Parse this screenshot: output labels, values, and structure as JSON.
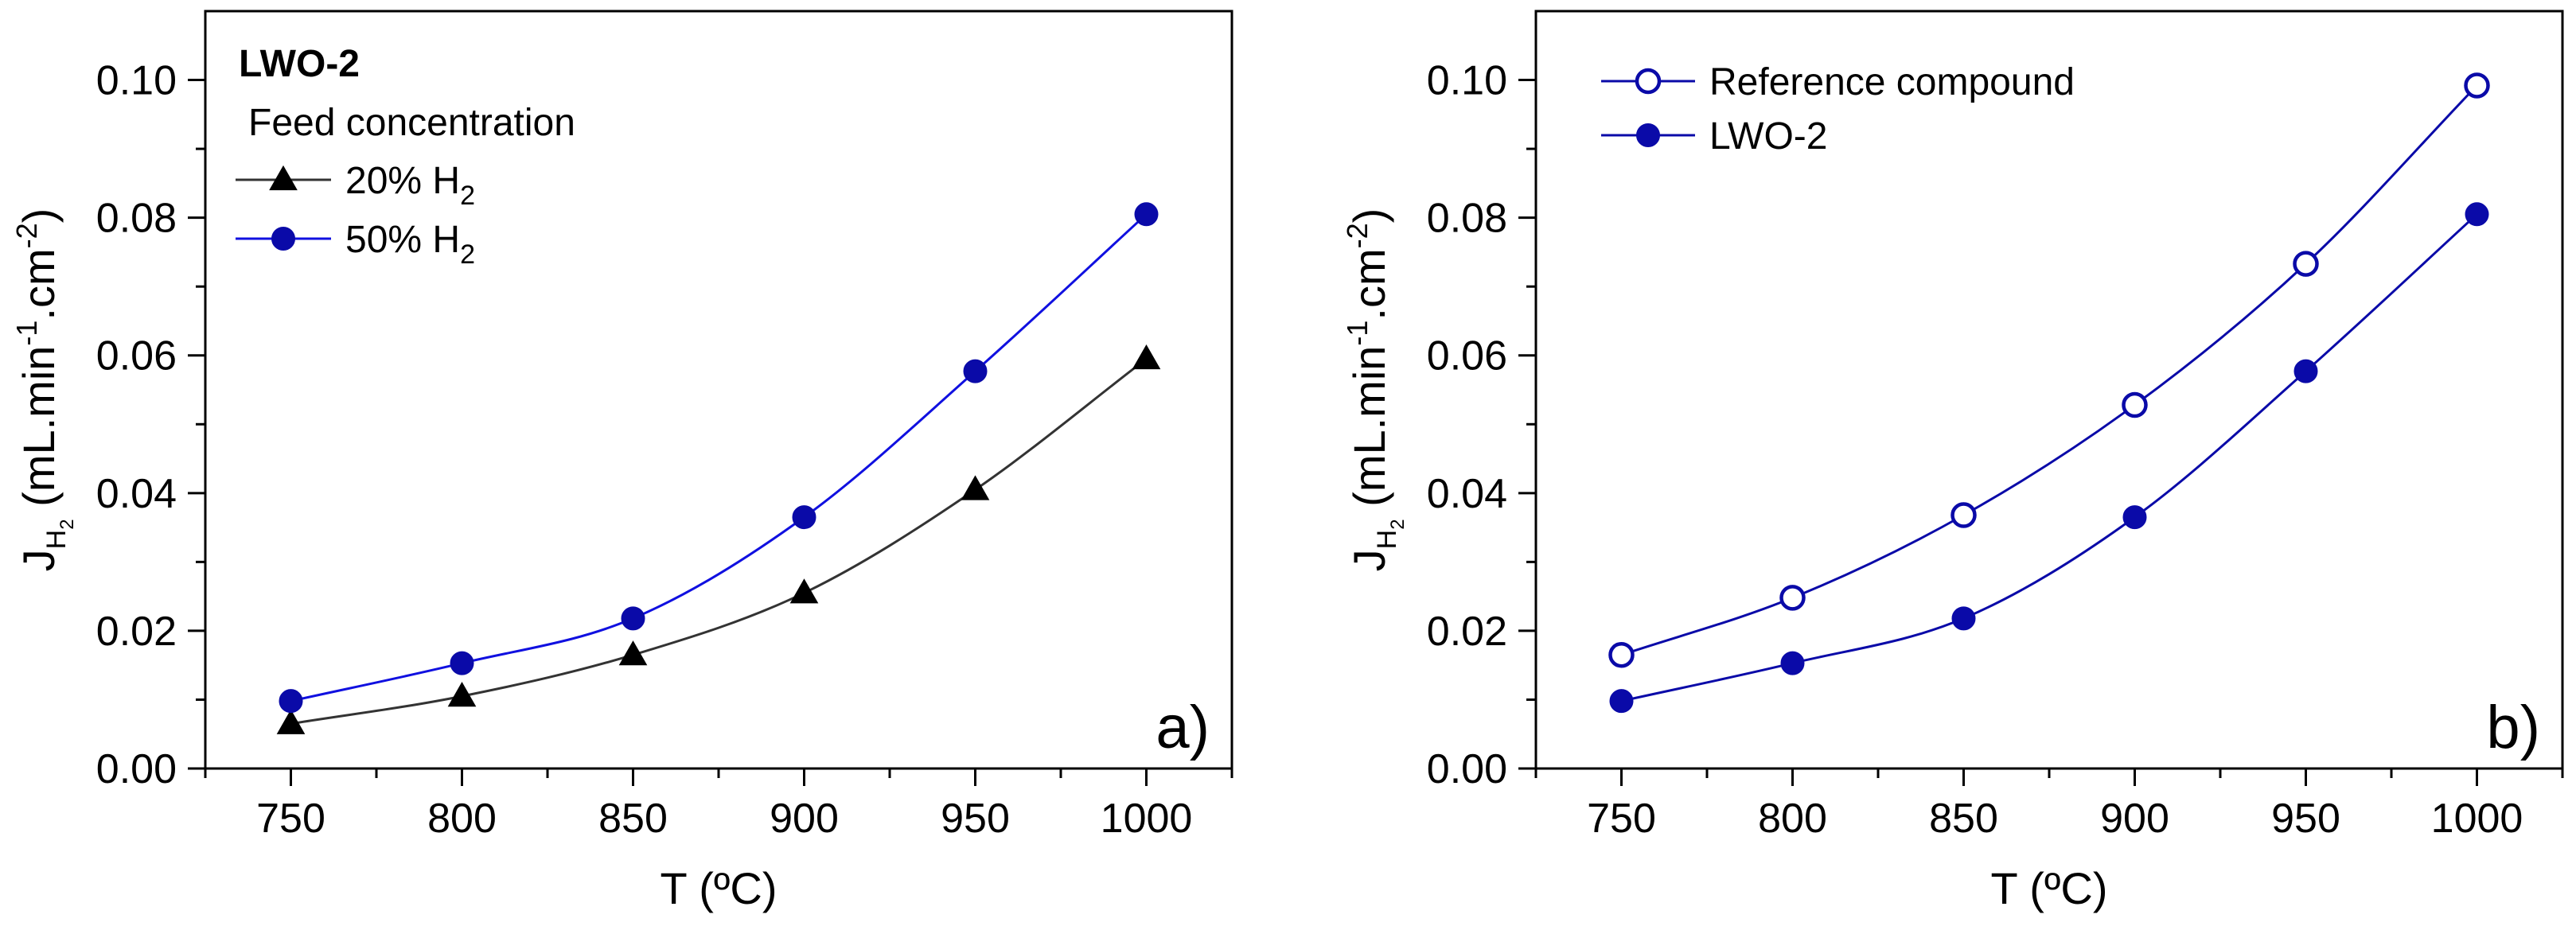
{
  "chart_data": [
    {
      "type": "line",
      "panel_label": "a)",
      "xlabel": "T (ºC)",
      "ylabel": {
        "main": "J",
        "sub1": "H",
        "sub2": "2",
        "unit_prefix": "(mL.min",
        "sup1": "-1",
        "unit_mid": ".cm",
        "sup2": "-2",
        "unit_suffix": ")"
      },
      "x": [
        750,
        800,
        850,
        900,
        950,
        1000
      ],
      "xlim": [
        725,
        1025
      ],
      "ylim": [
        0,
        0.11
      ],
      "xticks": [
        750,
        800,
        850,
        900,
        950,
        1000
      ],
      "xtick_labels": [
        "750",
        "800",
        "850",
        "900",
        "950",
        "1000"
      ],
      "yticks": [
        0,
        0.02,
        0.04,
        0.06,
        0.08,
        0.1
      ],
      "ytick_labels": [
        "0.00",
        "0.02",
        "0.04",
        "0.06",
        "0.08",
        "0.10"
      ],
      "legend_title": "LWO-2",
      "legend_subtitle": "Feed concentration",
      "series": [
        {
          "name": "20% H",
          "name_sub": "2",
          "marker": "triangle",
          "fill": "filled",
          "color": "#000000",
          "line_color": "#333333",
          "values": [
            0.0065,
            0.0105,
            0.0165,
            0.0255,
            0.0405,
            0.0595
          ]
        },
        {
          "name": "50% H",
          "name_sub": "2",
          "marker": "circle",
          "fill": "filled",
          "color": "#0a0aa8",
          "line_color": "#1010e0",
          "values": [
            0.0098,
            0.0153,
            0.0218,
            0.0365,
            0.0577,
            0.0805
          ]
        }
      ]
    },
    {
      "type": "line",
      "panel_label": "b)",
      "xlabel": "T (ºC)",
      "ylabel": {
        "main": "J",
        "sub1": "H",
        "sub2": "2",
        "unit_prefix": "(mL.min",
        "sup1": "-1",
        "unit_mid": ".cm",
        "sup2": "-2",
        "unit_suffix": ")"
      },
      "x": [
        750,
        800,
        850,
        900,
        950,
        1000
      ],
      "xlim": [
        725,
        1025
      ],
      "ylim": [
        0,
        0.11
      ],
      "xticks": [
        750,
        800,
        850,
        900,
        950,
        1000
      ],
      "xtick_labels": [
        "750",
        "800",
        "850",
        "900",
        "950",
        "1000"
      ],
      "yticks": [
        0,
        0.02,
        0.04,
        0.06,
        0.08,
        0.1
      ],
      "ytick_labels": [
        "0.00",
        "0.02",
        "0.04",
        "0.06",
        "0.08",
        "0.10"
      ],
      "series": [
        {
          "name": "Reference compound",
          "name_sub": "",
          "marker": "circle",
          "fill": "open",
          "color": "#0a0aa8",
          "line_color": "#0a0aa8",
          "values": [
            0.0165,
            0.0248,
            0.0368,
            0.0528,
            0.0733,
            0.0992
          ]
        },
        {
          "name": "LWO-2",
          "name_sub": "",
          "marker": "circle",
          "fill": "filled",
          "color": "#0a0aa8",
          "line_color": "#0a0aa8",
          "values": [
            0.0098,
            0.0153,
            0.0218,
            0.0365,
            0.0577,
            0.0805
          ]
        }
      ]
    }
  ]
}
